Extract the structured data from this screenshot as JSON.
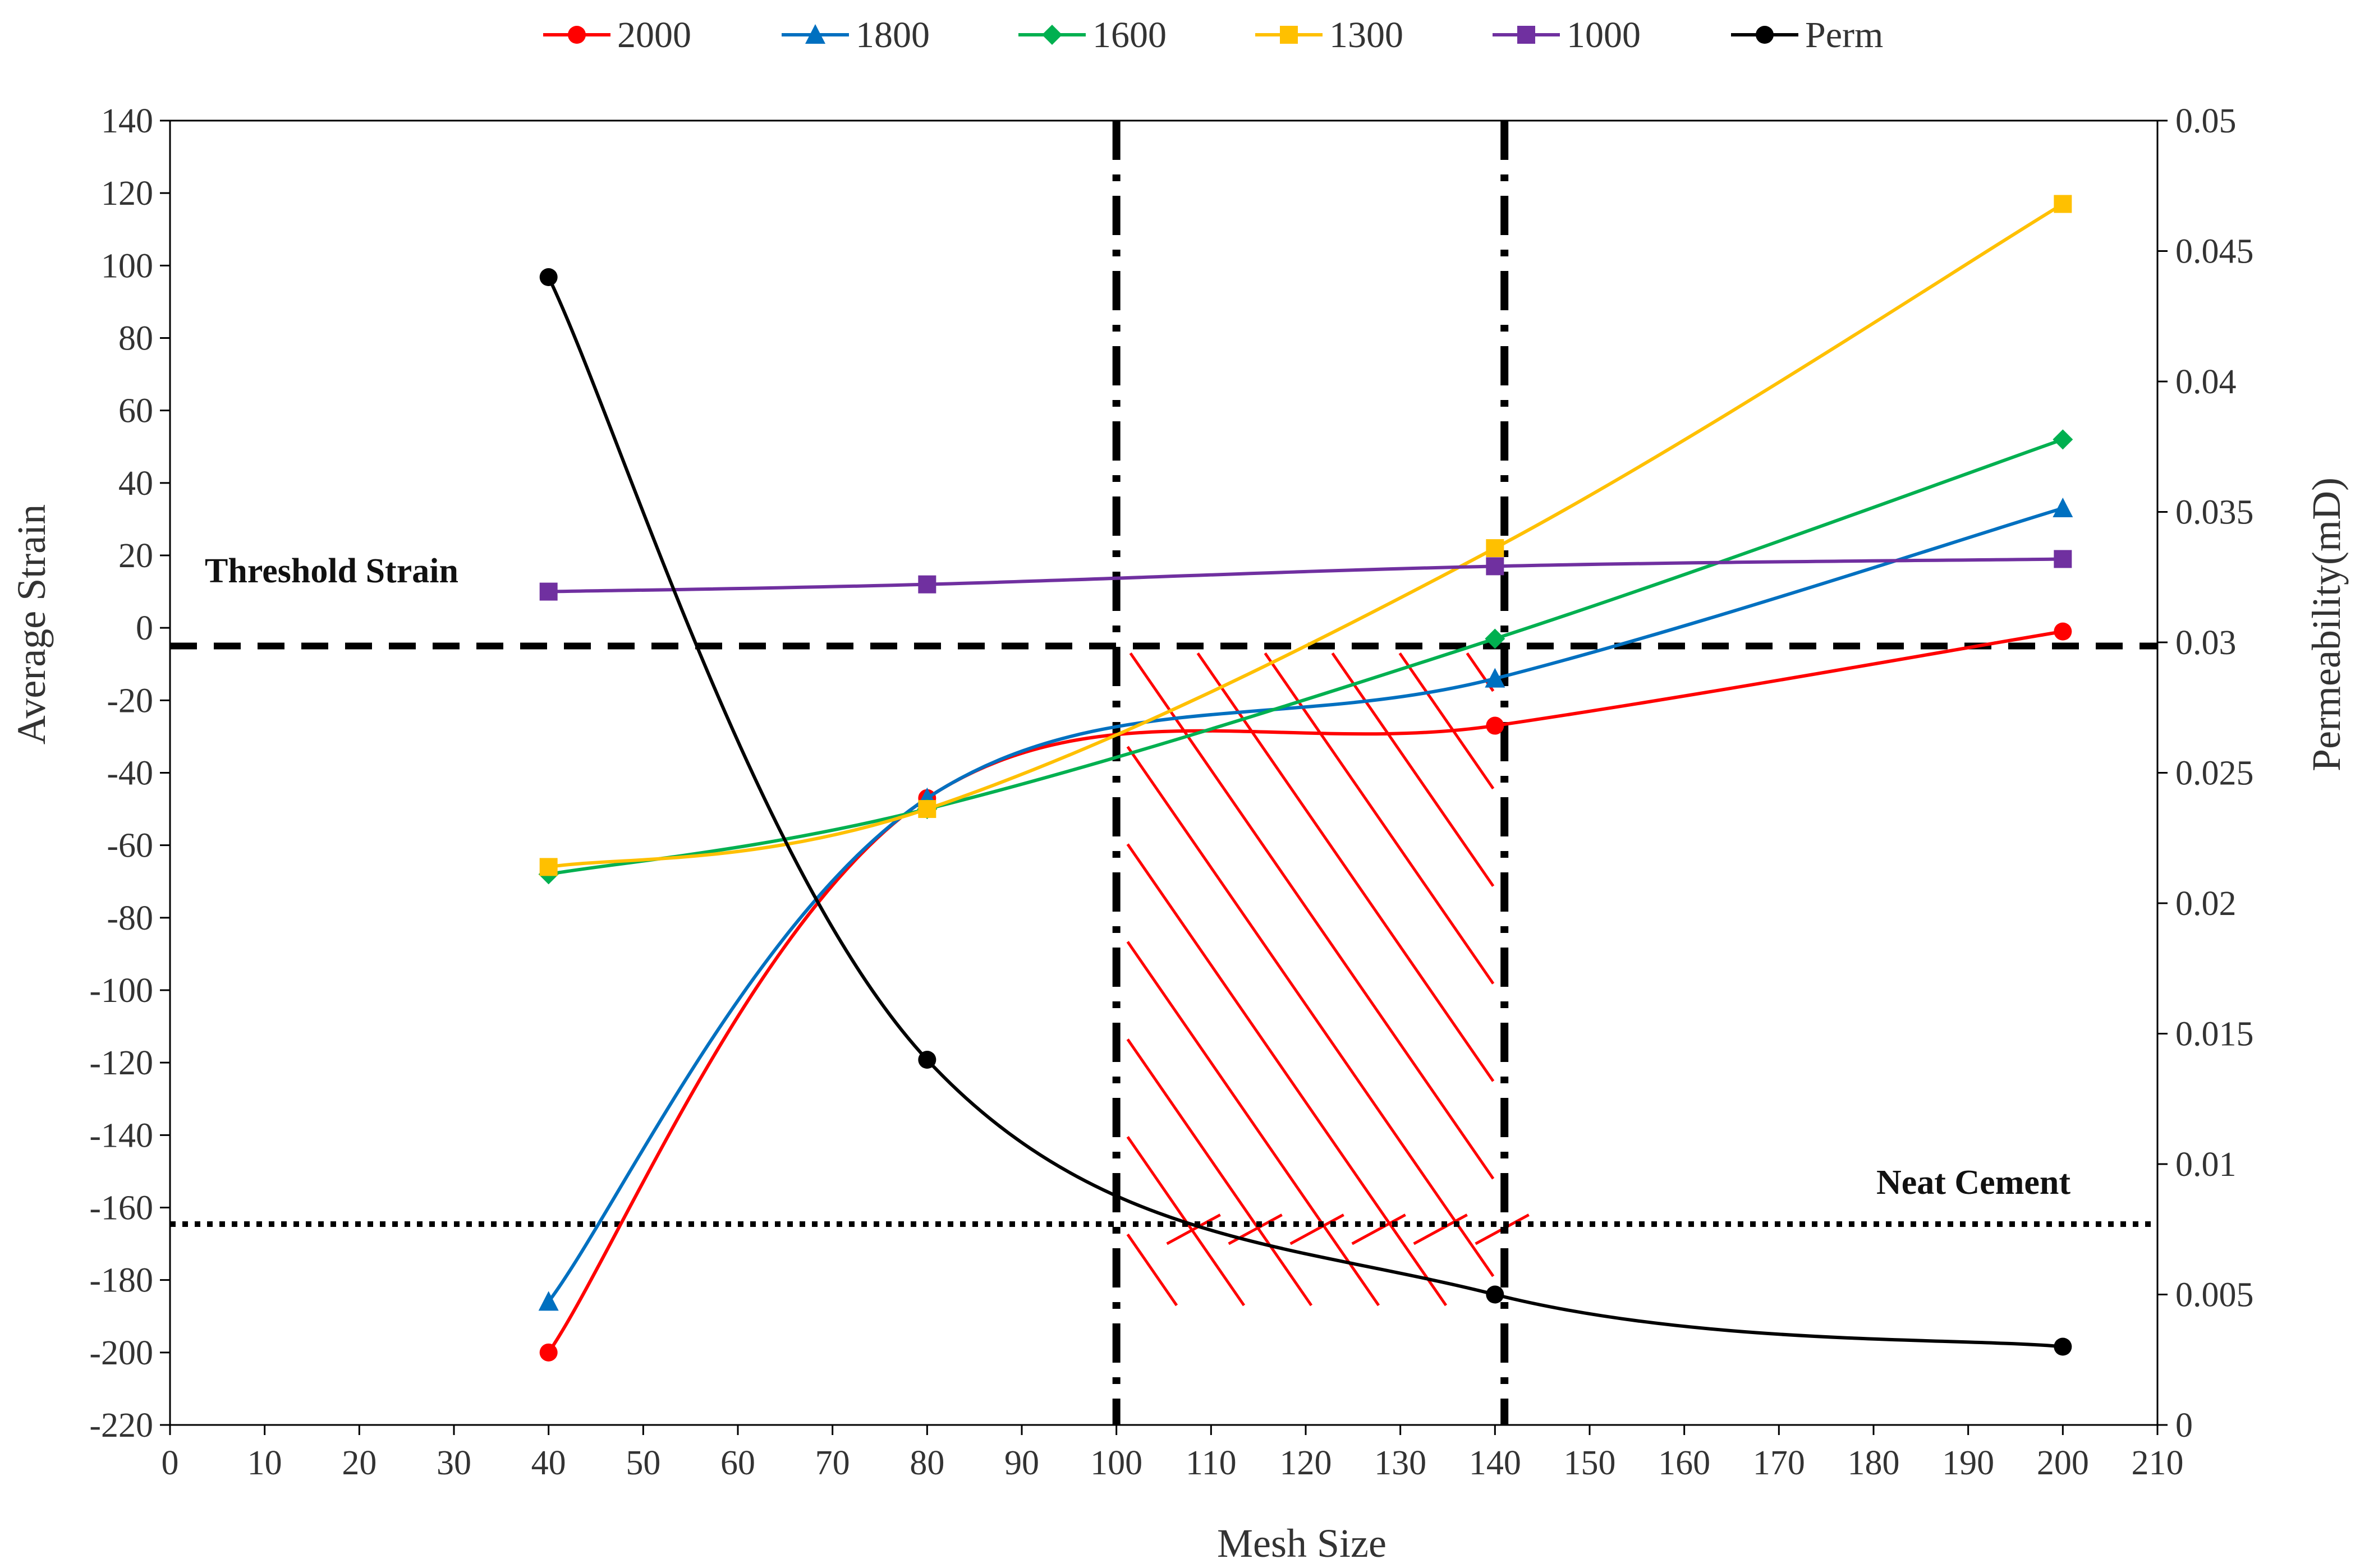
{
  "chart_data": {
    "type": "line",
    "title": "",
    "xlabel": "Mesh Size",
    "ylabel": "Average Strain",
    "y2label": "Permeability(mD)",
    "xlim": [
      0,
      210
    ],
    "xticks": [
      "0",
      "10",
      "20",
      "30",
      "40",
      "50",
      "60",
      "70",
      "80",
      "90",
      "100",
      "110",
      "120",
      "130",
      "140",
      "150",
      "160",
      "170",
      "180",
      "190",
      "200",
      "210"
    ],
    "ylim": [
      -220,
      140
    ],
    "yticks": [
      "-220",
      "-200",
      "-180",
      "-160",
      "-140",
      "-120",
      "-100",
      "-80",
      "-60",
      "-40",
      "-20",
      "0",
      "20",
      "40",
      "60",
      "80",
      "100",
      "120",
      "140"
    ],
    "y2lim": [
      0,
      0.05
    ],
    "y2ticks": [
      "0",
      "0.005",
      "0.01",
      "0.015",
      "0.02",
      "0.025",
      "0.03",
      "0.035",
      "0.04",
      "0.045",
      "0.05"
    ],
    "x": [
      40,
      80,
      140,
      200
    ],
    "series": [
      {
        "name": "2000",
        "axis": "left",
        "color": "#ff0000",
        "marker": "circle",
        "values": [
          -200,
          -47,
          -27,
          -1
        ]
      },
      {
        "name": "1800",
        "axis": "left",
        "color": "#0070c0",
        "marker": "triangle",
        "values": [
          -186,
          -47,
          -14,
          33
        ]
      },
      {
        "name": "1600",
        "axis": "left",
        "color": "#00b050",
        "marker": "diamond",
        "values": [
          -68,
          -50,
          -3,
          52
        ]
      },
      {
        "name": "1300",
        "axis": "left",
        "color": "#ffc000",
        "marker": "square",
        "values": [
          -66,
          -50,
          22,
          117
        ]
      },
      {
        "name": "1000",
        "axis": "left",
        "color": "#7030a0",
        "marker": "square",
        "values": [
          10,
          12,
          17,
          19
        ]
      },
      {
        "name": "Perm",
        "axis": "right",
        "color": "#000000",
        "marker": "circle",
        "values": [
          0.044,
          0.014,
          0.005,
          0.003
        ]
      }
    ],
    "reference_lines": {
      "threshold_strain": {
        "label": "Threshold Strain",
        "axis": "left",
        "value": -5
      },
      "neat_cement": {
        "label": "Neat Cement",
        "axis": "right",
        "value": 0.0077
      },
      "mesh_bounds": [
        100,
        141
      ]
    },
    "legend_position": "top"
  }
}
